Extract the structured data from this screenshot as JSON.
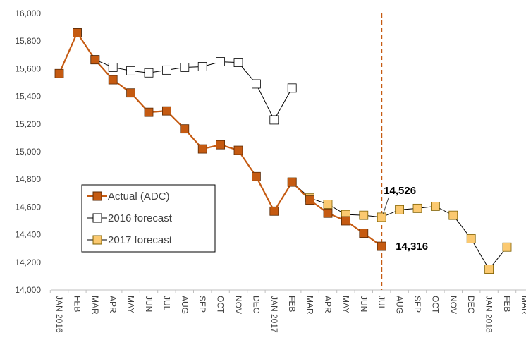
{
  "chart_data": {
    "type": "line",
    "categories": [
      "JAN 2016",
      "FEB",
      "MAR",
      "APR",
      "MAY",
      "JUN",
      "JUL",
      "AUG",
      "SEP",
      "OCT",
      "NOV",
      "DEC",
      "JAN 2017",
      "FEB",
      "MAR",
      "APR",
      "MAY",
      "JUN",
      "JUL",
      "AUG",
      "SEP",
      "OCT",
      "NOV",
      "DEC",
      "JAN 2018",
      "FEB",
      "MAR"
    ],
    "ylim": [
      14000,
      16000
    ],
    "yticks": [
      {
        "value": 14000,
        "label": "14,000"
      },
      {
        "value": 14200,
        "label": "14,200"
      },
      {
        "value": 14400,
        "label": "14,400"
      },
      {
        "value": 14600,
        "label": "14,600"
      },
      {
        "value": 14800,
        "label": "14,800"
      },
      {
        "value": 15000,
        "label": "15,000"
      },
      {
        "value": 15200,
        "label": "15,200"
      },
      {
        "value": 15400,
        "label": "15,400"
      },
      {
        "value": 15600,
        "label": "15,600"
      },
      {
        "value": 15800,
        "label": "15,800"
      },
      {
        "value": 16000,
        "label": "16,000"
      }
    ],
    "series": [
      {
        "name": "Actual (ADC)",
        "color": "#c55a11",
        "line_color": "#c55a11",
        "edge_color": "#5a2a05",
        "values": [
          15565,
          15860,
          15665,
          15520,
          15425,
          15285,
          15295,
          15165,
          15020,
          15050,
          15010,
          14820,
          14570,
          14780,
          14650,
          14555,
          14500,
          14410,
          14316,
          null,
          null,
          null,
          null,
          null,
          null,
          null,
          null
        ],
        "value_labels": [
          null,
          null,
          null,
          null,
          null,
          null,
          null,
          null,
          null,
          null,
          null,
          null,
          null,
          null,
          null,
          null,
          null,
          null,
          "14,316",
          null,
          null,
          null,
          null,
          null,
          null,
          null,
          null
        ]
      },
      {
        "name": "2016 forecast",
        "color": "#ffffff",
        "line_color": "#000000",
        "edge_color": "#000000",
        "values": [
          null,
          15860,
          15665,
          15610,
          15585,
          15570,
          15590,
          15610,
          15615,
          15650,
          15645,
          15490,
          15230,
          15460,
          null,
          null,
          null,
          null,
          null,
          null,
          null,
          null,
          null,
          null,
          null,
          null,
          null
        ]
      },
      {
        "name": "2017 forecast",
        "color": "#fbc970",
        "line_color": "#000000",
        "edge_color": "#7f6000",
        "values": [
          null,
          null,
          null,
          null,
          null,
          null,
          null,
          null,
          null,
          null,
          null,
          null,
          null,
          14780,
          14665,
          14620,
          14545,
          14540,
          14526,
          14580,
          14590,
          14605,
          14540,
          14370,
          14150,
          14310,
          null
        ],
        "value_labels": [
          null,
          null,
          null,
          null,
          null,
          null,
          null,
          null,
          null,
          null,
          null,
          null,
          null,
          null,
          null,
          null,
          null,
          null,
          "14,526",
          null,
          null,
          null,
          null,
          null,
          null,
          null,
          null
        ]
      }
    ],
    "vline_color": "#c55a11"
  }
}
